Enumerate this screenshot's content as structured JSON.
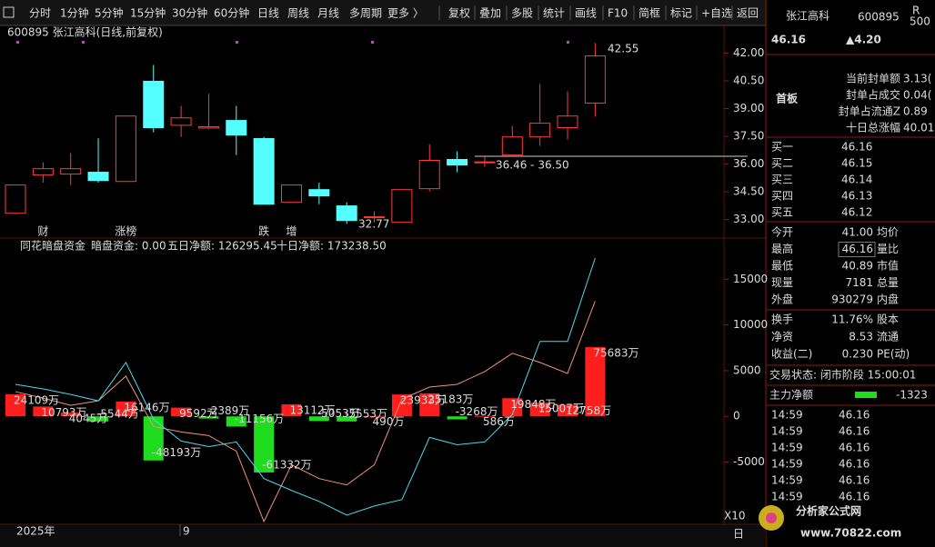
{
  "toolbar": {
    "left": [
      "分时",
      "1分钟",
      "5分钟",
      "15分钟",
      "30分钟",
      "60分钟",
      "日线",
      "周线",
      "月线",
      "多周期",
      "更多 〉"
    ],
    "right": [
      "复权",
      "叠加",
      "多股",
      "统计",
      "画线",
      "F10",
      "简框",
      "标记",
      "+自选",
      "返回"
    ]
  },
  "chart_header": "600895 张江高科(日线,前复权)",
  "price_chart": {
    "type": "candlestick",
    "ylim": [
      32,
      43.4
    ],
    "yticks": [
      {
        "value": 33,
        "label": "33.00"
      },
      {
        "value": 34.5,
        "label": "34.50"
      },
      {
        "value": 36,
        "label": "36.00"
      },
      {
        "value": 37.5,
        "label": "37.50"
      },
      {
        "value": 39,
        "label": "39.00"
      },
      {
        "value": 40.5,
        "label": "40.50"
      },
      {
        "value": 42,
        "label": "42.00"
      }
    ],
    "open": [
      33.34,
      35.41,
      35.46,
      35.56,
      35.06,
      40.48,
      38.1,
      37.95,
      38.36,
      37.38,
      33.93,
      34.62,
      33.74,
      33.1,
      32.85,
      34.67,
      36.25,
      36.08,
      36.49,
      37.47,
      37.97,
      39.3
    ],
    "high": [
      34.9,
      36.1,
      36.6,
      37.4,
      38.6,
      41.36,
      39.15,
      39.8,
      39.15,
      37.47,
      34.87,
      35.0,
      33.93,
      33.44,
      34.62,
      37.08,
      36.69,
      36.39,
      38.06,
      40.33,
      39.93,
      42.55
    ],
    "low": [
      33.3,
      35.0,
      34.87,
      35.0,
      35.06,
      37.72,
      37.47,
      37.9,
      36.49,
      33.83,
      33.93,
      33.83,
      32.77,
      32.85,
      32.85,
      34.52,
      35.56,
      35.85,
      36.49,
      36.98,
      37.33,
      38.56
    ],
    "close": [
      34.87,
      35.75,
      35.75,
      35.11,
      38.6,
      37.97,
      38.5,
      38.02,
      37.57,
      33.83,
      34.87,
      34.28,
      32.95,
      33.15,
      34.62,
      36.2,
      35.95,
      36.12,
      37.47,
      38.21,
      38.6,
      41.85
    ],
    "markers": [
      null,
      "财",
      null,
      null,
      "涨榜",
      null,
      null,
      null,
      null,
      "跌",
      "增",
      null,
      null,
      null,
      null,
      null,
      null,
      null,
      null,
      null,
      null,
      null
    ],
    "high_label": "42.55",
    "range_label": "36.46 - 36.50",
    "low_label": "32.77"
  },
  "indicator": {
    "type": "bar_line",
    "title": "同花暗盘资金",
    "labels": [
      "暗盘资金: 0.00",
      "五日净额: 126295.45",
      "十日净额: 173238.50"
    ],
    "ylim": [
      -11800,
      19200
    ],
    "yticks": [
      -5000,
      0,
      5000,
      10000,
      15000
    ],
    "bars": {
      "ylim": [
        -118000,
        192000
      ],
      "values": [
        24109,
        10793,
        4045,
        -5544,
        16146,
        -48193,
        9592,
        -2389,
        -11156,
        -61332,
        13112,
        -5053,
        -5553,
        490,
        23933,
        25183,
        -3268,
        586,
        19848,
        15007,
        12758,
        75683
      ],
      "value_labels": [
        "24109万",
        "10793万",
        "4045万",
        "-5544万",
        "16146万",
        "-48193万",
        "9592万",
        "-2389万",
        "-11156万",
        "-61332万",
        "13112万",
        "-5053万",
        "-5553万",
        "490万",
        "23933万",
        "25183万",
        "-3268万",
        "586万",
        "19848万",
        "15007万",
        "12758万",
        "75683万"
      ]
    },
    "series": [
      {
        "color": "#f0907a",
        "values": [
          2700,
          2000,
          1200,
          1700,
          4400,
          -1100,
          -1700,
          -2100,
          -3800,
          -11500,
          -5300,
          -6800,
          -7500,
          -5300,
          1900,
          3200,
          3500,
          4900,
          6900,
          5900,
          4700,
          12600
        ]
      },
      {
        "color": "#4fd6ee",
        "values": [
          3500,
          3000,
          2400,
          1700,
          5900,
          -300,
          -2700,
          -3300,
          -2800,
          -6800,
          -8100,
          -9300,
          -10800,
          -9800,
          -9100,
          -2300,
          -3100,
          -2800,
          200,
          8200,
          8200,
          17300
        ]
      }
    ]
  },
  "bottom": {
    "year": "2025年",
    "month": "9",
    "zoom": "X10",
    "period": "日"
  },
  "watermark": {
    "name": "分析家公式网",
    "url": "www.70822.com"
  },
  "quote": {
    "name": "张江高科",
    "code": "600895",
    "badge": [
      "R",
      "500"
    ],
    "price": "46.16",
    "change": "▲4.20",
    "tag": "首板",
    "seal": [
      [
        "当前封单额",
        "3.13("
      ],
      [
        "封单占成交",
        "0.04("
      ],
      [
        "封单占流通Z",
        "0.89"
      ],
      [
        "十日总涨幅",
        "40.01"
      ]
    ],
    "bids": [
      [
        "买一",
        "46.16"
      ],
      [
        "买二",
        "46.15"
      ],
      [
        "买三",
        "46.14"
      ],
      [
        "买四",
        "46.13"
      ],
      [
        "买五",
        "46.12"
      ]
    ],
    "stats": [
      [
        "今开",
        "41.00",
        "均价"
      ],
      [
        "最高",
        "46.16",
        "量比"
      ],
      [
        "最低",
        "40.89",
        "市值"
      ],
      [
        "现量",
        "7181",
        "总量"
      ],
      [
        "外盘",
        "930279",
        "内盘"
      ],
      [
        "换手",
        "11.76%",
        "股本"
      ],
      [
        "净资",
        "8.53",
        "流通"
      ],
      [
        "收益(二)",
        "0.230",
        "PE(动)"
      ]
    ],
    "status": "交易状态: 闭市阶段 15:00:01",
    "main_net": [
      "主力净额",
      "-1323"
    ],
    "trades": [
      [
        "14:59",
        "46.16"
      ],
      [
        "14:59",
        "46.16"
      ],
      [
        "14:59",
        "46.16"
      ],
      [
        "14:59",
        "46.16"
      ],
      [
        "14:59",
        "46.16"
      ],
      [
        "14:59",
        "46.16"
      ]
    ]
  }
}
